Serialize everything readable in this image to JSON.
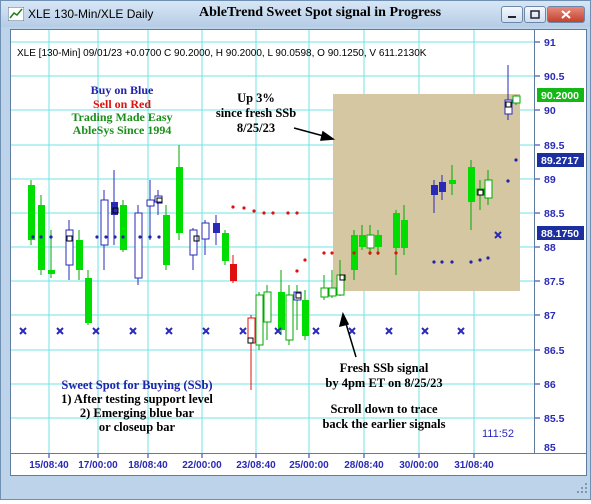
{
  "window": {
    "title": "XLE 130-Min/XLE Daily",
    "heading": "AbleTrend Sweet Spot signal in Progress",
    "icon": "chart-app-icon"
  },
  "info_line": "XLE [130-Min] 09/01/23  +0.0700 C 90.2000, H 90.2000, L 90.0598, O 90.1250, V 611.2130K",
  "legend": {
    "buy": "Buy on Blue",
    "sell": "Sell on Red",
    "tagline": "Trading Made Easy",
    "since": "AbleSys Since 1994"
  },
  "annotations": {
    "up_line1": "Up 3%",
    "up_line2": "since fresh SSb",
    "up_line3": "8/25/23",
    "fresh_line1": "Fresh SSb signal",
    "fresh_line2": "by 4pm ET on 8/25/23",
    "scroll_line1": "Scroll down to trace",
    "scroll_line2": "back the earlier signals",
    "ssb_title": "Sweet Spot for Buying (SSb)",
    "ssb_item1": "1) After testing support level",
    "ssb_item2": "2) Emerging blue bar",
    "ssb_item3": "or closeup bar",
    "timer": "111:52"
  },
  "price_axis": {
    "ticks": [
      "91",
      "90.5",
      "90",
      "89.5",
      "89",
      "88.5",
      "88",
      "87.5",
      "87",
      "86.5",
      "86",
      "85.5",
      "85"
    ],
    "badge_last": "90.2000",
    "badge_upper": "89.2717",
    "badge_lower": "88.1750"
  },
  "time_axis": {
    "labels": [
      "15/08:40",
      "17/00:00",
      "18/08:40",
      "22/00:00",
      "23/08:40",
      "25/00:00",
      "28/08:40",
      "30/00:00",
      "31/08:40"
    ]
  },
  "colors": {
    "up_bar": "#00dd00",
    "down_bar": "#2a2ab8",
    "sell_bar": "#e01010",
    "stop_dot_red": "#e01010",
    "stop_dot_blue": "#2222aa",
    "ssb_zone": "#d5c7a1",
    "grid": "#6fe3e3",
    "badge_green": "#14b814",
    "badge_blue": "#1c2fa0"
  }
}
